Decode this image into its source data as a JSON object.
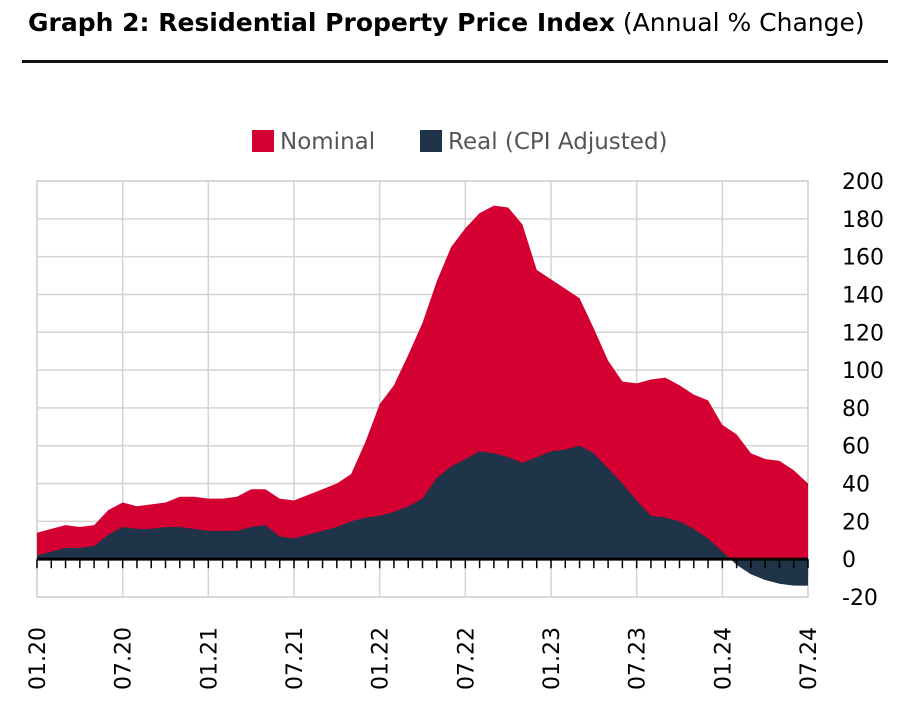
{
  "header": {
    "title_bold": "Graph 2: Residential Property Price Index",
    "title_sub": "(Annual % Change)"
  },
  "chart_data": {
    "type": "area",
    "ylim": [
      -20,
      200
    ],
    "yticks": [
      "200",
      "180",
      "160",
      "140",
      "120",
      "100",
      "80",
      "60",
      "40",
      "20",
      "0",
      "-20"
    ],
    "ytick_values": [
      200,
      180,
      160,
      140,
      120,
      100,
      80,
      60,
      40,
      20,
      0,
      -20
    ],
    "xticks": [
      "01.20",
      "07.20",
      "01.21",
      "07.21",
      "01.22",
      "07.22",
      "01.23",
      "07.23",
      "01.24",
      "07.24"
    ],
    "y_axis_position": "right",
    "grid": true,
    "legend_position": "top",
    "x": [
      "01.20",
      "02.20",
      "03.20",
      "04.20",
      "05.20",
      "06.20",
      "07.20",
      "08.20",
      "09.20",
      "10.20",
      "11.20",
      "12.20",
      "01.21",
      "02.21",
      "03.21",
      "04.21",
      "05.21",
      "06.21",
      "07.21",
      "08.21",
      "09.21",
      "10.21",
      "11.21",
      "12.21",
      "01.22",
      "02.22",
      "03.22",
      "04.22",
      "05.22",
      "06.22",
      "07.22",
      "08.22",
      "09.22",
      "10.22",
      "11.22",
      "12.22",
      "01.23",
      "02.23",
      "03.23",
      "04.23",
      "05.23",
      "06.23",
      "07.23",
      "08.23",
      "09.23",
      "10.23",
      "11.23",
      "12.23",
      "01.24",
      "02.24",
      "03.24",
      "04.24",
      "05.24",
      "06.24",
      "07.24"
    ],
    "series": [
      {
        "name": "Nominal",
        "color": "#d50032",
        "values": [
          14,
          16,
          18,
          17,
          18,
          26,
          30,
          28,
          29,
          30,
          33,
          33,
          32,
          32,
          33,
          37,
          37,
          32,
          31,
          34,
          37,
          40,
          45,
          62,
          82,
          92,
          108,
          125,
          147,
          165,
          175,
          183,
          187,
          186,
          177,
          153,
          148,
          143,
          138,
          122,
          105,
          94,
          93,
          95,
          96,
          92,
          87,
          84,
          71,
          66,
          56,
          53,
          52,
          47,
          40
        ]
      },
      {
        "name": "Real (CPI Adjusted)",
        "color": "#1f3349",
        "values": [
          2,
          4,
          6,
          6,
          7,
          13,
          17,
          16,
          16,
          17,
          17,
          16,
          15,
          15,
          15,
          17,
          18,
          12,
          11,
          13,
          15,
          17,
          20,
          22,
          23,
          25,
          28,
          32,
          43,
          49,
          53,
          57,
          56,
          54,
          51,
          54,
          57,
          58,
          60,
          56,
          48,
          40,
          31,
          23,
          22,
          20,
          16,
          11,
          4,
          -3,
          -8,
          -11,
          -13,
          -14,
          -14
        ]
      }
    ]
  }
}
